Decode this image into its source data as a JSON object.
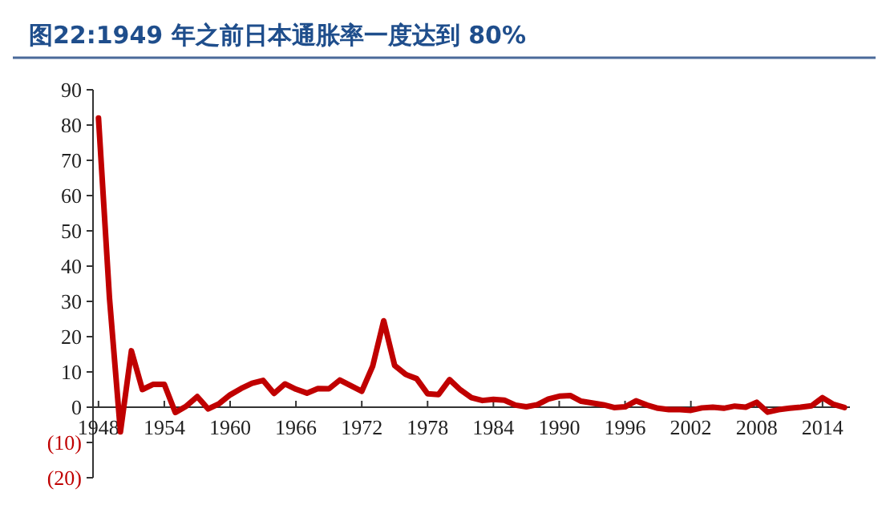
{
  "chart_data": {
    "type": "line",
    "title": "图22:1949 年之前日本通胀率一度达到 80%",
    "x": [
      1948,
      1949,
      1950,
      1951,
      1952,
      1953,
      1954,
      1955,
      1956,
      1957,
      1958,
      1959,
      1960,
      1961,
      1962,
      1963,
      1964,
      1965,
      1966,
      1967,
      1968,
      1969,
      1970,
      1971,
      1972,
      1973,
      1974,
      1975,
      1976,
      1977,
      1978,
      1979,
      1980,
      1981,
      1982,
      1983,
      1984,
      1985,
      1986,
      1987,
      1988,
      1989,
      1990,
      1991,
      1992,
      1993,
      1994,
      1995,
      1996,
      1997,
      1998,
      1999,
      2000,
      2001,
      2002,
      2003,
      2004,
      2005,
      2006,
      2007,
      2008,
      2009,
      2010,
      2011,
      2012,
      2013,
      2014,
      2015,
      2016
    ],
    "series": [
      {
        "color": "#c00000",
        "values": [
          82,
          31,
          -7,
          16,
          5,
          6.5,
          6.5,
          -1.5,
          0.3,
          3,
          -0.5,
          1,
          3.5,
          5.3,
          6.8,
          7.6,
          3.9,
          6.6,
          5.1,
          4,
          5.3,
          5.2,
          7.7,
          6.1,
          4.5,
          11.7,
          24.5,
          11.8,
          9.3,
          8.1,
          3.8,
          3.6,
          7.8,
          4.9,
          2.7,
          1.9,
          2.2,
          2,
          0.6,
          0.1,
          0.7,
          2.3,
          3.1,
          3.3,
          1.7,
          1.2,
          0.7,
          -0.1,
          0.1,
          1.8,
          0.6,
          -0.3,
          -0.7,
          -0.7,
          -0.9,
          -0.2,
          0,
          -0.3,
          0.3,
          0,
          1.4,
          -1.4,
          -0.7,
          -0.3,
          0,
          0.4,
          2.7,
          0.8,
          -0.1
        ]
      }
    ],
    "xlim": [
      1947.5,
      2016.5
    ],
    "xticks": [
      1948,
      1954,
      1960,
      1966,
      1972,
      1978,
      1984,
      1990,
      1996,
      2002,
      2008,
      2014
    ],
    "ylim": [
      -20,
      90
    ],
    "yticks": [
      {
        "value": -20,
        "label": "(20)"
      },
      {
        "value": -10,
        "label": "(10)"
      },
      0,
      10,
      20,
      30,
      40,
      50,
      60,
      70,
      80,
      90
    ],
    "grid": false,
    "marker": "none",
    "line_style": "solid"
  }
}
